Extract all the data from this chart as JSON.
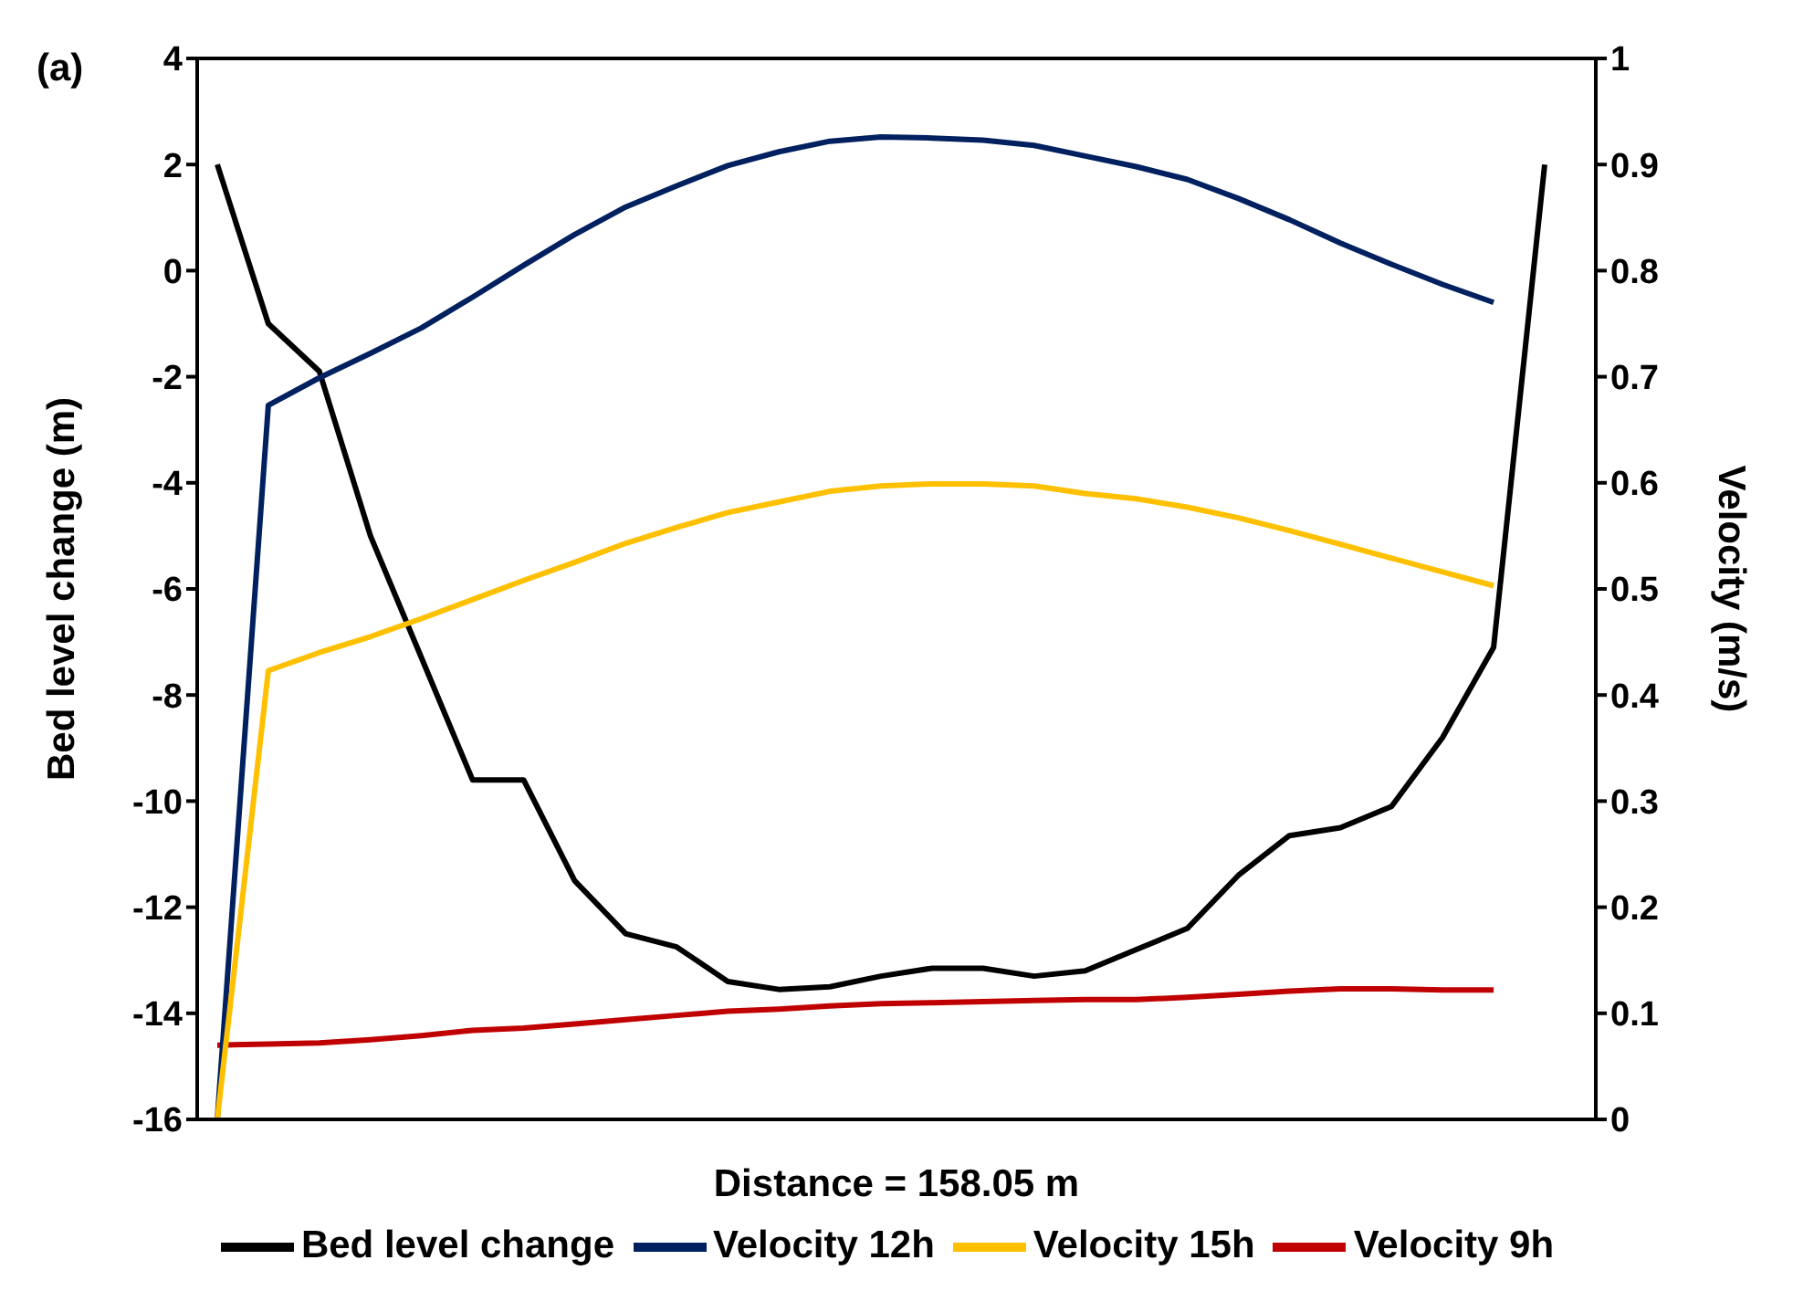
{
  "chart_data": {
    "type": "line",
    "annotations": [
      "(a)"
    ],
    "xlabel": "Distance = 158.05 m",
    "ylabel": "Bed level change (m)",
    "y2label": "Velocity (m/s)",
    "categories": [
      null,
      null,
      null,
      null,
      null,
      null,
      null,
      null,
      null,
      null,
      null,
      null,
      null,
      null,
      null,
      null,
      null,
      null,
      null,
      null,
      null,
      null,
      null,
      null,
      null,
      null,
      null
    ],
    "series": [
      {
        "name": "Bed level change",
        "color": "#000000",
        "values": [
          2,
          -1,
          -1.9,
          -5,
          -7.3,
          -9.6,
          -9.6,
          -11.5,
          -12.5,
          -12.75,
          -13.4,
          -13.55,
          -13.5,
          -13.3,
          -13.15,
          -13.15,
          -13.3,
          -13.2,
          -12.8,
          -12.4,
          -11.4,
          -10.65,
          -10.5,
          -10.1,
          -8.8,
          -7.1,
          2
        ]
      },
      {
        "name": "Velocity 9h",
        "color": "#c00000",
        "axis": "y2",
        "values": [
          0.07,
          0.071,
          0.072,
          0.075,
          0.079,
          0.084,
          0.086,
          0.09,
          0.094,
          0.098,
          0.102,
          0.104,
          0.107,
          0.109,
          0.11,
          0.111,
          0.112,
          0.113,
          0.113,
          0.115,
          0.118,
          0.121,
          0.123,
          0.123,
          0.122,
          0.122,
          null
        ]
      },
      {
        "name": "Velocity 12h",
        "color": "#002060",
        "axis": "y2",
        "values": [
          0,
          0.673,
          0.699,
          0.722,
          0.746,
          0.775,
          0.805,
          0.834,
          0.86,
          0.88,
          0.899,
          0.912,
          0.922,
          0.926,
          0.925,
          0.923,
          0.918,
          0.908,
          0.898,
          0.886,
          0.868,
          0.848,
          0.826,
          0.806,
          0.787,
          0.77,
          null
        ]
      },
      {
        "name": "Velocity 15h",
        "color": "#ffc000",
        "axis": "y2",
        "values": [
          0,
          0.423,
          0.44,
          0.455,
          0.472,
          0.49,
          0.508,
          0.525,
          0.543,
          0.558,
          0.572,
          0.582,
          0.592,
          0.597,
          0.599,
          0.599,
          0.597,
          0.59,
          0.585,
          0.577,
          0.567,
          0.555,
          0.542,
          0.529,
          0.516,
          0.503,
          null
        ]
      }
    ],
    "ylim": [
      -16,
      4
    ],
    "yticks": [
      -16,
      -14,
      -12,
      -10,
      -8,
      -6,
      -4,
      -2,
      0,
      2,
      4
    ],
    "y2lim": [
      0,
      1
    ],
    "y2ticks": [
      0,
      0.1,
      0.2,
      0.3,
      0.4,
      0.5,
      0.6,
      0.7,
      0.8,
      0.9,
      1
    ],
    "grid": false,
    "legend": "bottom",
    "marker": "none",
    "line_style": "solid"
  }
}
